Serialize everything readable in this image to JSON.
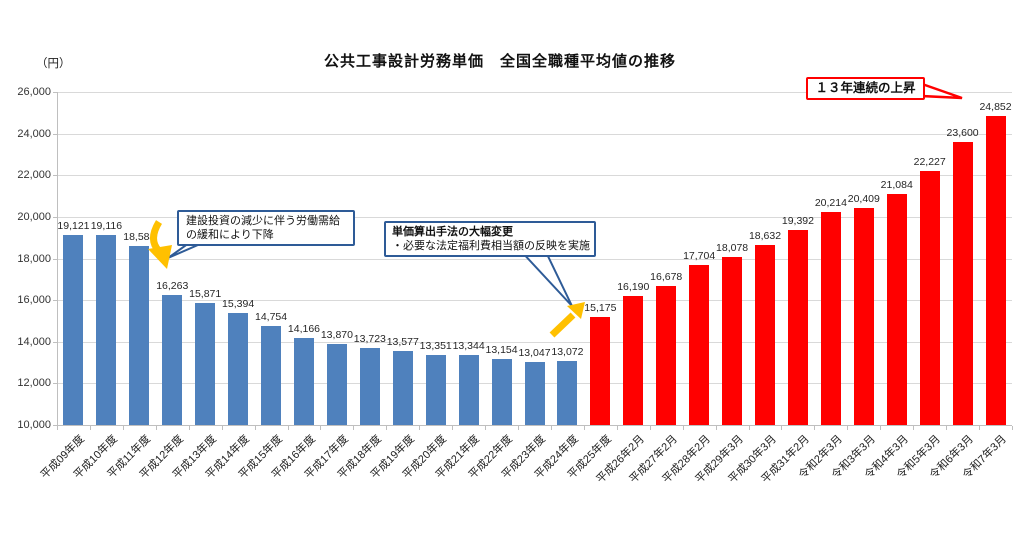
{
  "chart_data": {
    "type": "bar",
    "title": "公共工事設計労務単価　全国全職種平均値の推移",
    "unit_label": "（円）",
    "ylim": [
      10000,
      26000
    ],
    "ytick_interval": 2000,
    "ytick_labels": [
      "10,000",
      "12,000",
      "14,000",
      "16,000",
      "18,000",
      "20,000",
      "22,000",
      "24,000",
      "26,000"
    ],
    "grid": true,
    "legend": "none",
    "categories": [
      "平成09年度",
      "平成10年度",
      "平成11年度",
      "平成12年度",
      "平成13年度",
      "平成14年度",
      "平成15年度",
      "平成16年度",
      "平成17年度",
      "平成18年度",
      "平成19年度",
      "平成20年度",
      "平成21年度",
      "平成22年度",
      "平成23年度",
      "平成24年度",
      "平成25年度",
      "平成26年2月",
      "平成27年2月",
      "平成28年2月",
      "平成29年3月",
      "平成30年3月",
      "平成31年2月",
      "令和2年3月",
      "令和3年3月",
      "令和4年3月",
      "令和5年3月",
      "令和6年3月",
      "令和7年3月"
    ],
    "values": [
      19121,
      19116,
      18584,
      16263,
      15871,
      15394,
      14754,
      14166,
      13870,
      13723,
      13577,
      13351,
      13344,
      13154,
      13047,
      13072,
      15175,
      16190,
      16678,
      17704,
      18078,
      18632,
      19392,
      20214,
      20409,
      21084,
      22227,
      23600,
      24852
    ],
    "value_labels": [
      "19,121",
      "19,116",
      "18,584",
      "16,263",
      "15,871",
      "15,394",
      "14,754",
      "14,166",
      "13,870",
      "13,723",
      "13,577",
      "13,351",
      "13,344",
      "13,154",
      "13,047",
      "13,072",
      "15,175",
      "16,190",
      "16,678",
      "17,704",
      "18,078",
      "18,632",
      "19,392",
      "20,214",
      "20,409",
      "21,084",
      "22,227",
      "23,600",
      "24,852"
    ],
    "colors": {
      "declining_bars": "#4f81bd",
      "rising_bars": "#ff0000"
    },
    "rising_start_index": 16
  },
  "annotations": {
    "decline_note": {
      "line1": "建設投資の減少に伴う労働需給",
      "line2": "の緩和により下降",
      "border_color": "#2e5b97"
    },
    "method_note": {
      "line1": "単価算出手法の大幅変更",
      "line2": "・必要な法定福利費相当額の反映を実施",
      "border_color": "#2e5b97"
    },
    "rise_callout": {
      "text": "１３年連続の上昇",
      "border_color": "#ff0000"
    },
    "arrow_color": "#ffc000"
  }
}
